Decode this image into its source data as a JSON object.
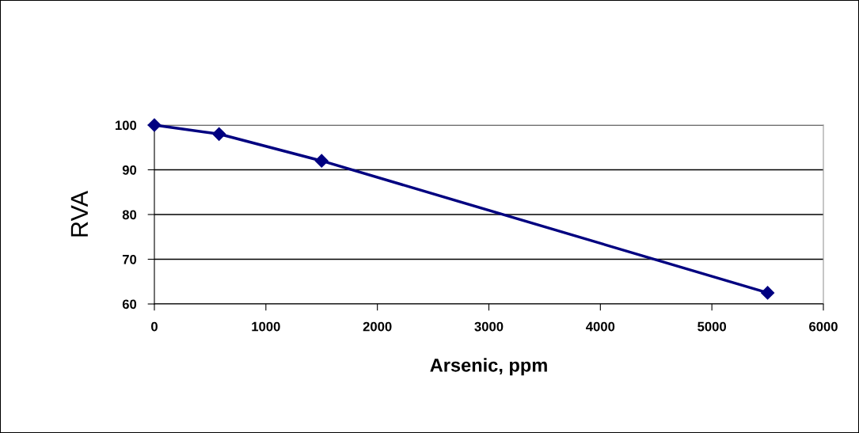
{
  "chart_data": {
    "type": "line",
    "xlabel": "Arsenic, ppm",
    "ylabel": "RVA",
    "x": [
      0,
      580,
      1500,
      5500
    ],
    "series": [
      {
        "color": "#000080",
        "values": [
          100,
          98,
          92,
          62.5
        ]
      }
    ],
    "xlim": [
      0,
      6000
    ],
    "xticks": [
      0,
      1000,
      2000,
      3000,
      4000,
      5000,
      6000
    ],
    "ylim": [
      60,
      100
    ],
    "yticks": [
      60,
      70,
      80,
      90,
      100
    ],
    "grid": "y",
    "marker": "diamond",
    "line_style": "solid"
  }
}
